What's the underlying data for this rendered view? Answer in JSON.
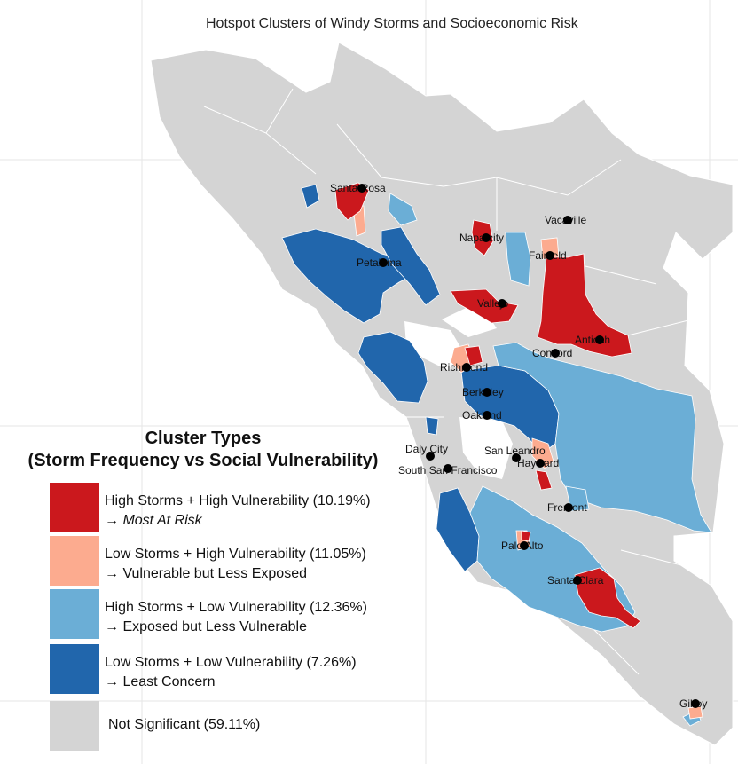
{
  "title": "Hotspot Clusters of Windy Storms  and Socioeconomic Risk",
  "legend": {
    "title_line1": "Cluster Types",
    "title_line2": "(Storm Frequency vs Social Vulnerability)",
    "items": [
      {
        "label": "High Storms + High Vulnerability (10.19%)",
        "arrow": "→",
        "sublabel": "Most At Risk",
        "color": "#cb181d"
      },
      {
        "label": "Low Storms + High Vulnerability (11.05%)",
        "arrow": "→",
        "sublabel": "Vulnerable but Less Exposed",
        "color": "#fcab8f"
      },
      {
        "label": "High Storms + Low Vulnerability (12.36%)",
        "arrow": "→",
        "sublabel": "Exposed but Less Vulnerable",
        "color": "#6baed6"
      },
      {
        "label": "Low Storms + Low Vulnerability (7.26%)",
        "arrow": "→",
        "sublabel": "Least Concern",
        "color": "#2166ac"
      },
      {
        "label": "Not Significant (59.11%)",
        "arrow": "",
        "sublabel": "",
        "color": "#d4d4d4"
      }
    ]
  },
  "cities": [
    "Santa Rosa",
    "Vacaville",
    "Napa city",
    "Fairfield",
    "Petaluma",
    "Vallejo",
    "Antioch",
    "Concord",
    "Richmond",
    "Berkeley",
    "Oakland",
    "San Leandro",
    "Daly City",
    "South San Francisco",
    "Hayward",
    "Fremont",
    "Palo Alto",
    "Santa Clara",
    "Gilroy"
  ]
}
